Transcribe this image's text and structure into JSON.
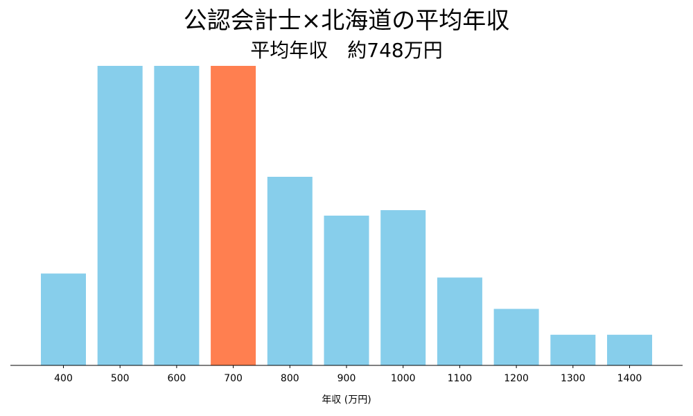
{
  "chart_data": {
    "type": "bar",
    "title": "公認会計士×北海道の平均年収",
    "subtitle": "平均年収　約748万円",
    "xlabel": "年収 (万円)",
    "ylabel": "",
    "categories": [
      "400",
      "500",
      "600",
      "700",
      "800",
      "900",
      "1000",
      "1100",
      "1200",
      "1300",
      "1400"
    ],
    "values": [
      13.5,
      44,
      44,
      44,
      27.7,
      22,
      22.8,
      12.9,
      8.3,
      4.5,
      4.5
    ],
    "ylim": [
      0,
      44
    ],
    "highlight_category": "700",
    "colors": {
      "bar": "#87CEEB",
      "highlight": "#FF7F50",
      "axis": "#000000"
    },
    "grid": false,
    "legend": "none"
  }
}
